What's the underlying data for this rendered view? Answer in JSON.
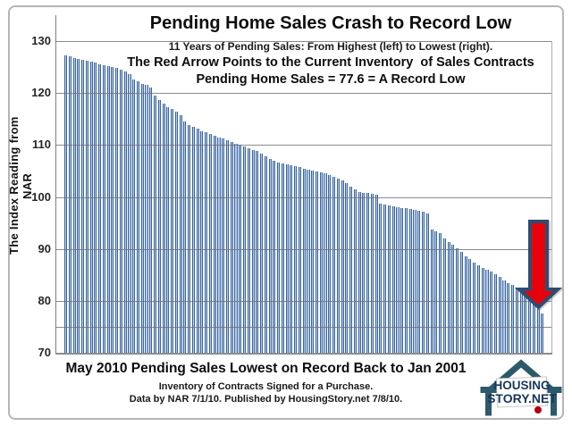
{
  "chart_data": {
    "type": "bar",
    "title": "Pending Home Sales Crash to Record Low",
    "subtitles": [
      "11 Years of Pending Sales: From Highest (left) to Lowest (right).",
      "The Red Arrow Points to the Current Inventory  of Sales Contracts",
      "Pending Home Sales = 77.6 = A Record Low"
    ],
    "ylabel": "The Index Reading from NAR",
    "ylim": [
      70,
      130
    ],
    "yticks": [
      130,
      120,
      110,
      100,
      90,
      80,
      70
    ],
    "gridline_values": [
      130,
      120,
      110,
      100,
      90,
      80,
      75
    ],
    "values": [
      127.2,
      127.0,
      126.8,
      126.6,
      126.4,
      126.2,
      126.0,
      125.8,
      125.6,
      125.4,
      125.2,
      125.0,
      124.8,
      124.5,
      124.2,
      123.6,
      122.7,
      122.2,
      121.8,
      121.5,
      121.0,
      119.5,
      118.7,
      117.9,
      117.3,
      116.9,
      116.4,
      115.8,
      114.5,
      113.9,
      113.5,
      113.2,
      112.7,
      112.4,
      112.1,
      111.8,
      111.5,
      111.2,
      110.9,
      110.6,
      110.3,
      110.0,
      109.7,
      109.4,
      109.1,
      108.8,
      108.3,
      107.8,
      107.3,
      106.9,
      106.7,
      106.5,
      106.3,
      106.1,
      105.9,
      105.7,
      105.5,
      105.3,
      105.1,
      104.9,
      104.7,
      104.5,
      104.2,
      103.9,
      103.6,
      103.2,
      102.6,
      102.0,
      101.5,
      101.0,
      100.8,
      100.7,
      100.6,
      100.4,
      98.8,
      98.6,
      98.4,
      98.2,
      98.0,
      97.9,
      97.8,
      97.7,
      97.6,
      97.4,
      97.2,
      96.8,
      93.7,
      93.4,
      93.1,
      92.0,
      91.4,
      90.8,
      90.1,
      89.4,
      88.6,
      88.0,
      87.4,
      86.9,
      86.4,
      86.0,
      85.6,
      85.1,
      84.6,
      84.0,
      83.5,
      83.0,
      82.4,
      81.9,
      81.3,
      80.6,
      79.5,
      78.5,
      77.6
    ],
    "current_value": 77.6,
    "annotation": {
      "shape": "down-arrow",
      "meaning": "red arrow points to the current (lowest) pending home sales bar",
      "fill": "#e8000b",
      "border": "#2e4d71"
    },
    "bar_colors": {
      "edge": "#3a659e",
      "center": "#b7cce6"
    },
    "legend": "none",
    "grid": "horizontal"
  },
  "footer": {
    "line1": "May 2010 Pending Sales Lowest on Record Back to Jan 2001",
    "line2": "Inventory of Contracts Signed for a Purchase.",
    "line3": "Data by NAR 7/1/10. Published by HousingStory.net 7/8/10."
  },
  "logo": {
    "line1": "HOUSING",
    "line2": "STORY.NET",
    "house_color": "#2d5a6b",
    "text_color": "#17375e",
    "dot_color": "#b00010"
  }
}
